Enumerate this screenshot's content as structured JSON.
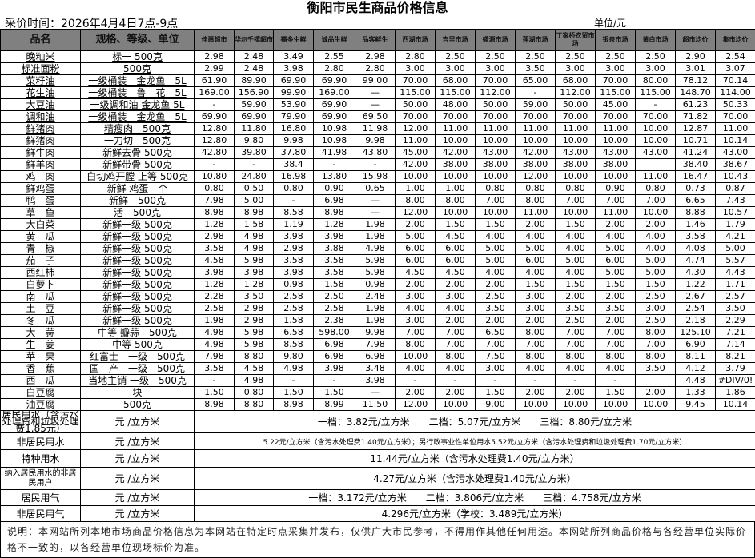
{
  "title": "衡阳市民生商品价格信息",
  "collect_time": "采价时间：2026年4月4日7点-9点",
  "unit": "单位/元",
  "headers": {
    "name": "品名",
    "spec": "规格、等级、单位",
    "markets": [
      "佳惠超市",
      "华尔千禧超市",
      "福多生鲜",
      "诚品生鲜",
      "品客鲜生",
      "西湖市场",
      "吉里市场",
      "盛源市场",
      "莲湖市场",
      "丁家桥农贸市场",
      "银泉市场",
      "黄白市场",
      "超市均价",
      "集市均价"
    ]
  },
  "rows": [
    {
      "name": "晚籼米",
      "spec": "标一 500克",
      "prices": [
        "2.98",
        "2.48",
        "3.49",
        "2.55",
        "2.98",
        "2.80",
        "2.50",
        "2.50",
        "2.50",
        "2.50",
        "2.50",
        "2.50",
        "2.90",
        "2.54"
      ]
    },
    {
      "name": "标准面粉",
      "spec": "500克",
      "prices": [
        "2.99",
        "2.48",
        "3.98",
        "2.80",
        "2.80",
        "3.00",
        "3.00",
        "3.00",
        "3.50",
        "3.00",
        "3.00",
        "3.00",
        "3.01",
        "3.07"
      ]
    },
    {
      "name": "菜籽油",
      "spec": "一级桶装　金龙鱼　5L",
      "prices": [
        "61.90",
        "89.90",
        "69.90",
        "69.90",
        "99.00",
        "70.00",
        "68.00",
        "70.00",
        "65.00",
        "68.00",
        "70.00",
        "80.00",
        "78.12",
        "70.14"
      ]
    },
    {
      "name": "花生油",
      "spec": "一级桶装　鲁　花　5L",
      "prices": [
        "169.00",
        "156.90",
        "99.90",
        "169.00",
        "—",
        "115.00",
        "115.00",
        "112.00",
        "-",
        "112.00",
        "115.00",
        "115.00",
        "148.70",
        "114.00"
      ]
    },
    {
      "name": "大豆油",
      "spec": "一级调和油 金龙鱼 5L",
      "prices": [
        "-",
        "59.90",
        "53.90",
        "69.90",
        "—",
        "50.00",
        "48.00",
        "50.00",
        "59.00",
        "50.00",
        "45.00",
        "-",
        "61.23",
        "50.33"
      ]
    },
    {
      "name": "调和油",
      "spec": "一级桶装　金龙鱼　5L",
      "prices": [
        "69.90",
        "69.90",
        "79.90",
        "69.90",
        "69.50",
        "70.00",
        "70.00",
        "70.00",
        "70.00",
        "70.00",
        "70.00",
        "70.00",
        "71.82",
        "70.00"
      ]
    },
    {
      "name": "鲜猪肉",
      "spec": "精瘦肉　500克",
      "prices": [
        "12.80",
        "11.80",
        "16.80",
        "10.98",
        "11.98",
        "12.00",
        "11.00",
        "11.00",
        "11.00",
        "11.00",
        "11.00",
        "10.00",
        "12.87",
        "11.00"
      ]
    },
    {
      "name": "鲜猪肉",
      "spec": "一刀切　500克",
      "prices": [
        "12.80",
        "9.80",
        "9.98",
        "10.98",
        "9.98",
        "11.00",
        "10.00",
        "10.00",
        "10.00",
        "10.00",
        "10.00",
        "10.00",
        "10.71",
        "10.14"
      ]
    },
    {
      "name": "鲜牛肉",
      "spec": "新鲜去骨 500克",
      "prices": [
        "42.80",
        "39.80",
        "37.80",
        "41.98",
        "43.80",
        "45.00",
        "42.00",
        "43.00",
        "42.00",
        "43.00",
        "43.00",
        "43.00",
        "41.24",
        "43.00"
      ]
    },
    {
      "name": "鲜羊肉",
      "spec": "新鲜带骨 500克",
      "prices": [
        "-",
        "-",
        "38.4",
        "-",
        "-",
        "42.00",
        "38.00",
        "38.00",
        "38.00",
        "38.00",
        "38.00",
        "",
        "38.40",
        "38.67"
      ]
    },
    {
      "name": "鸡　肉",
      "spec": "白切鸡开膛 上等 500克",
      "prices": [
        "10.80",
        "24.80",
        "16.98",
        "13.80",
        "15.98",
        "10.00",
        "10.00",
        "10.00",
        "12.00",
        "10.00",
        "10.00",
        "11.00",
        "16.47",
        "10.43"
      ]
    },
    {
      "name": "鲜鸡蛋",
      "spec": "新鲜 鸡蛋　个",
      "prices": [
        "0.80",
        "0.50",
        "0.80",
        "0.90",
        "0.65",
        "1.00",
        "1.00",
        "0.80",
        "0.80",
        "0.80",
        "0.90",
        "0.80",
        "0.73",
        "0.87"
      ]
    },
    {
      "name": "鸭　蛋",
      "spec": "新鲜　500克",
      "prices": [
        "7.98",
        "5.00",
        "-",
        "6.98",
        "—",
        "8.00",
        "8.00",
        "7.00",
        "8.00",
        "7.00",
        "7.00",
        "7.00",
        "6.65",
        "7.43"
      ]
    },
    {
      "name": "草　鱼",
      "spec": "活　500克",
      "prices": [
        "8.98",
        "8.98",
        "8.58",
        "8.98",
        "—",
        "12.00",
        "10.00",
        "10.00",
        "11.00",
        "10.00",
        "11.00",
        "10.00",
        "8.88",
        "10.57"
      ]
    },
    {
      "name": "大白菜",
      "spec": "新鲜一级 500克",
      "prices": [
        "1.28",
        "1.58",
        "1.19",
        "1.28",
        "1.98",
        "2.00",
        "1.50",
        "1.50",
        "2.00",
        "1.50",
        "2.00",
        "2.00",
        "1.46",
        "1.79"
      ]
    },
    {
      "name": "黄　瓜",
      "spec": "新鲜一级 500克",
      "prices": [
        "2.98",
        "4.98",
        "3.98",
        "3.98",
        "1.98",
        "5.00",
        "4.50",
        "4.00",
        "4.00",
        "4.00",
        "4.00",
        "4.00",
        "3.58",
        "4.21"
      ]
    },
    {
      "name": "青　椒",
      "spec": "新鲜一级 500克",
      "prices": [
        "3.58",
        "4.98",
        "2.98",
        "3.88",
        "4.98",
        "6.00",
        "6.00",
        "5.00",
        "5.00",
        "4.00",
        "5.00",
        "4.00",
        "4.08",
        "5.00"
      ]
    },
    {
      "name": "茄　子",
      "spec": "新鲜一级 500克",
      "prices": [
        "4.58",
        "5.98",
        "3.58",
        "3.58",
        "5.98",
        "6.00",
        "6.00",
        "5.00",
        "6.00",
        "5.00",
        "6.00",
        "5.00",
        "4.74",
        "5.57"
      ]
    },
    {
      "name": "西红柿",
      "spec": "新鲜一级 500克",
      "prices": [
        "3.98",
        "3.98",
        "3.98",
        "3.58",
        "5.98",
        "4.50",
        "4.50",
        "4.00",
        "4.00",
        "4.00",
        "5.00",
        "5.00",
        "4.30",
        "4.43"
      ]
    },
    {
      "name": "白萝卜",
      "spec": "新鲜一级 500克",
      "prices": [
        "1.28",
        "1.28",
        "0.98",
        "1.58",
        "0.98",
        "2.00",
        "2.00",
        "2.00",
        "1.50",
        "1.50",
        "1.50",
        "1.50",
        "1.22",
        "1.71"
      ]
    },
    {
      "name": "南　瓜",
      "spec": "新鲜一级 500克",
      "prices": [
        "2.28",
        "3.50",
        "2.58",
        "2.50",
        "2.48",
        "3.00",
        "3.00",
        "2.50",
        "3.00",
        "2.00",
        "2.00",
        "2.50",
        "2.67",
        "2.57"
      ]
    },
    {
      "name": "土　豆",
      "spec": "新鲜一级 500克",
      "prices": [
        "2.58",
        "2.98",
        "2.58",
        "2.58",
        "1.98",
        "4.00",
        "4.00",
        "3.50",
        "3.00",
        "3.50",
        "3.50",
        "3.00",
        "2.54",
        "3.50"
      ]
    },
    {
      "name": "冬　瓜",
      "spec": "新鲜一级 500克",
      "prices": [
        "1.98",
        "2.98",
        "1.58",
        "2.38",
        "1.98",
        "3.00",
        "2.00",
        "2.00",
        "2.00",
        "2.50",
        "2.00",
        "2.50",
        "2.18",
        "2.29"
      ]
    },
    {
      "name": "大　蒜",
      "spec": "中等 瓣蒜　500克",
      "prices": [
        "4.98",
        "5.98",
        "6.58",
        "598.00",
        "9.98",
        "7.00",
        "7.00",
        "6.50",
        "8.00",
        "7.00",
        "7.00",
        "8.00",
        "125.10",
        "7.21"
      ]
    },
    {
      "name": "生　姜",
      "spec": "中等 500克",
      "prices": [
        "4.98",
        "5.98",
        "8.58",
        "6.98",
        "7.98",
        "8.00",
        "7.00",
        "7.00",
        "7.00",
        "7.00",
        "7.00",
        "7.00",
        "6.90",
        "7.14"
      ]
    },
    {
      "name": "苹　果",
      "spec": "红富士　一级　500克",
      "prices": [
        "7.98",
        "8.80",
        "9.80",
        "6.98",
        "6.98",
        "10.00",
        "8.00",
        "7.50",
        "8.00",
        "8.00",
        "8.00",
        "8.00",
        "8.11",
        "8.21"
      ]
    },
    {
      "name": "香　蕉",
      "spec": "国　产　一级　500克",
      "prices": [
        "3.58",
        "4.58",
        "4.98",
        "3.98",
        "3.48",
        "4.00",
        "4.00",
        "3.00",
        "4.00",
        "4.00",
        "4.00",
        "3.50",
        "4.12",
        "3.79"
      ]
    },
    {
      "name": "西　瓜",
      "spec": "当地主销 一级　500克",
      "prices": [
        "-",
        "4.98",
        "-",
        "-",
        "3.98",
        "-",
        "-",
        "-",
        "-",
        "-",
        "-",
        "",
        "4.48",
        "#DIV/0!"
      ]
    },
    {
      "name": "白豆腐",
      "spec": "块",
      "prices": [
        "1.50",
        "0.80",
        "1.50",
        "1.50",
        "—",
        "2.00",
        "2.00",
        "1.50",
        "2.00",
        "2.00",
        "1.50",
        "2.00",
        "1.33",
        "1.86"
      ]
    },
    {
      "name": "油豆腐",
      "spec": "500克",
      "prices": [
        "8.98",
        "8.80",
        "8.98",
        "8.99",
        "11.50",
        "12.00",
        "10.00",
        "9.00",
        "10.00",
        "10.00",
        "10.00",
        "10.00",
        "9.45",
        "10.14"
      ]
    }
  ],
  "utilities": [
    {
      "name": "居民用水（含污水处理费和垃圾处理费1.85元）",
      "unit": "元 /立方米",
      "value": "一档：3.82元/立方米　　二档：5.07元/立方米　　三档：8.80元/立方米"
    },
    {
      "name": "非居民用水",
      "unit": "元 /立方米",
      "value": "5.22元/立方米（含污水处理费1.40元/立方米）；另行政事业性单位用水5.52元/立方米（含污水处理费和垃圾处理费1.70元/立方米）"
    },
    {
      "name": "特种用水",
      "unit": "元 /立方米",
      "value": "11.44元/立方米（含污水处理费1.40元/立方米）"
    },
    {
      "name": "纳入居民用水的非居民用户",
      "unit": "元 /立方米",
      "value": "4.27元/立方米（含污水处理费1.40元/立方米）"
    },
    {
      "name": "居民用气",
      "unit": "元 /立方米",
      "value": "一档：3.172元/立方米　　二档：3.806元/立方米　　三档：4.758元/立方米"
    },
    {
      "name": "非居民用气",
      "unit": "元 /立方米",
      "value": "4.296元/立方米（学校：3.489元/立方米）"
    }
  ],
  "note": "说明：本网站所列本地市场商品价格信息为本网站在特定时点采集并发布，仅供广大市民参考，不得用作其他任何用途。本网站所列商品价格与各经营单位实际价格不一致的，以各经营单位现场标价为准。",
  "colors": {
    "header_bg": "#808080",
    "marker": "#1a8a1a"
  }
}
